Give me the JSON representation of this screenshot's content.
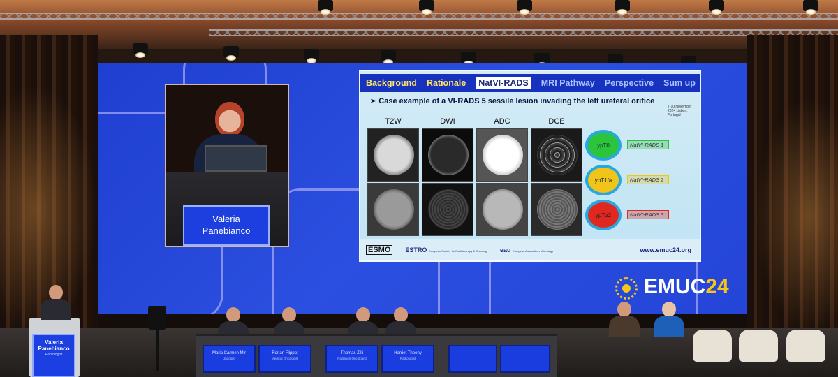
{
  "slide": {
    "tabs": [
      "Background",
      "Rationale",
      "NatVI-RADS",
      "MRI Pathway",
      "Perspective",
      "Sum up"
    ],
    "bullet": "Case example of a VI-RADS 5 sessile lesion invading the left ureteral orifice",
    "conference_note": "7-10 November 2024 Lisbon, Portugal",
    "columns": [
      "T2W",
      "DWI",
      "ADC",
      "DCE"
    ],
    "outcomes": [
      {
        "circle": "ypT0",
        "tag": "NatVI-RADS 1",
        "color": "#2bc43a"
      },
      {
        "circle": "ypT1/a",
        "tag": "NatVI-RADS 2",
        "color": "#f0c419"
      },
      {
        "circle": "ypT≥2",
        "tag": "NatVI-RADS 3",
        "color": "#e0281e"
      }
    ],
    "footer_logos": [
      "ESMO",
      "ESTRO",
      "eau"
    ],
    "estro_caption": "European Society for Radiotherapy & Oncology",
    "eau_caption": "European Association of Urology",
    "url": "www.emuc24.org"
  },
  "speaker": {
    "name_line1": "Valeria",
    "name_line2": "Panebianco"
  },
  "event_logo": {
    "text": "EMUC",
    "year": "24"
  },
  "panel": [
    {
      "name": "Maria Carmen Mir",
      "role": "Urologist"
    },
    {
      "name": "Ronan Flippot",
      "role": "Medical Oncologist"
    },
    {
      "name": "Thomas Zilli",
      "role": "Radiation Oncologist"
    },
    {
      "name": "Harriet Thoeny",
      "role": "Radiologist"
    }
  ],
  "lectern": {
    "name_line1": "Valeria",
    "name_line2": "Panebianco",
    "role": "Radiologist"
  },
  "colors": {
    "screen_blue": "#2445d8",
    "accent_yellow": "#f5c518",
    "slide_bg": "#bfe3f3"
  }
}
